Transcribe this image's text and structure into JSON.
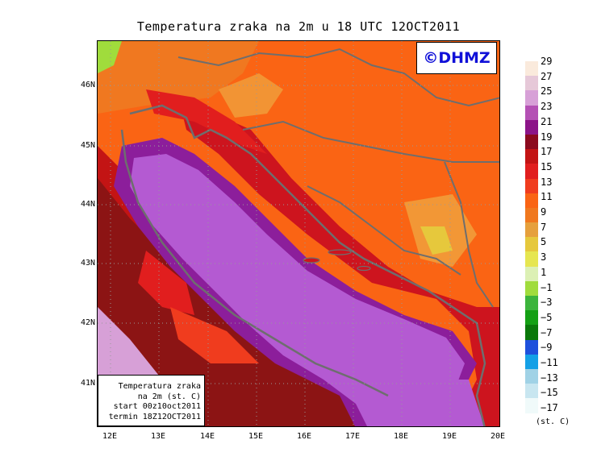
{
  "title": "Temperatura zraka na 2m u 18 UTC 12OCT2011",
  "logo": "©DHMZ",
  "infobox": {
    "line1": "Temperatura zraka",
    "line2": "na 2m (st. C)",
    "line3": "start 00z10oct2011",
    "line4": "termin 18Z12OCT2011"
  },
  "axes": {
    "y_labels": [
      "46N",
      "45N",
      "44N",
      "43N",
      "42N",
      "41N"
    ],
    "x_labels": [
      "12E",
      "13E",
      "14E",
      "15E",
      "16E",
      "17E",
      "18E",
      "19E",
      "20E"
    ]
  },
  "legend": {
    "unit": "(st. C)",
    "labels": [
      "29",
      "27",
      "25",
      "23",
      "21",
      "19",
      "17",
      "15",
      "13",
      "11",
      "9",
      "7",
      "5",
      "3",
      "1",
      "−1",
      "−3",
      "−5",
      "−7",
      "−9",
      "−11",
      "−13",
      "−15",
      "−17"
    ],
    "colors": [
      "#faeadc",
      "#e6c8d8",
      "#d7a0d7",
      "#b450b4",
      "#8c1488",
      "#8c0a1e",
      "#c31414",
      "#e11e1e",
      "#f03c1e",
      "#fa6414",
      "#f0781e",
      "#e6a03c",
      "#e6c83c",
      "#e6e650",
      "#dcf0b4",
      "#a0dc3c",
      "#3cb43c",
      "#14a014",
      "#0a780a",
      "#1e50dc",
      "#14a0e6",
      "#a0d2e6",
      "#c8e6f0",
      "#f0fafa"
    ]
  },
  "palette": {
    "sea_purple": "#b45ad2",
    "sea_dark": "#8c1e9b",
    "land_red": "#cd141e",
    "land_dark": "#8c1414",
    "land_orange": "#fa6414",
    "land_light": "#f0a03c",
    "border": "#6e6e6e"
  }
}
